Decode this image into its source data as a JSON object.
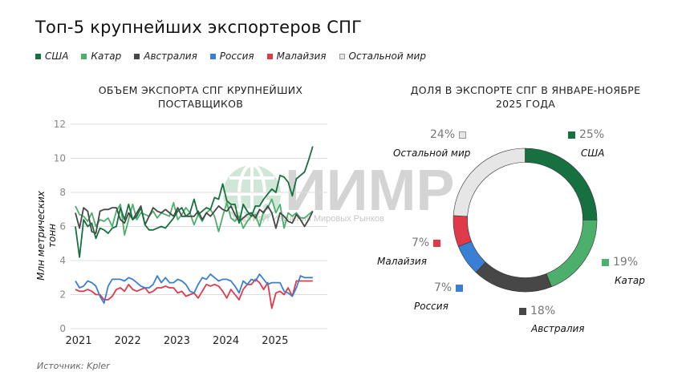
{
  "title": "Топ-5 крупнейших экспортеров СПГ",
  "legend": [
    {
      "label": "США",
      "color": "#17703f"
    },
    {
      "label": "Катар",
      "color": "#4caf6b"
    },
    {
      "label": "Австралия",
      "color": "#474747"
    },
    {
      "label": "Россия",
      "color": "#3a7fd4"
    },
    {
      "label": "Малайзия",
      "color": "#df3a4a"
    },
    {
      "label": "Остальной мир",
      "color": "#e6e6e6"
    }
  ],
  "watermark": {
    "text": "ИИМР",
    "subtext": "Институт Изучения Мировых Рынков"
  },
  "source": "Источник: Kpler",
  "chart_data": [
    {
      "type": "line",
      "title": "Объем экспорта СПГ крупнейших поставщиков",
      "xlabel": "",
      "ylabel": "Млн метрических тонн",
      "ylim": [
        0,
        12
      ],
      "yticks": [
        0,
        2,
        4,
        6,
        8,
        10,
        12
      ],
      "xtick_labels": [
        "2021",
        "2022",
        "2023",
        "2024",
        "2025"
      ],
      "x_range": "январь 2021 – ноябрь 2025 (помесячно)",
      "grid": true,
      "series": [
        {
          "name": "США",
          "color": "#17703f",
          "values": [
            6.0,
            4.2,
            6.4,
            6.0,
            6.2,
            5.3,
            5.9,
            5.8,
            5.6,
            5.9,
            6.0,
            7.1,
            6.4,
            7.3,
            6.4,
            6.6,
            7.1,
            6.1,
            5.8,
            5.8,
            5.9,
            6.0,
            5.9,
            6.2,
            6.5,
            6.9,
            7.1,
            6.6,
            6.8,
            7.6,
            6.7,
            6.9,
            7.1,
            7.0,
            7.7,
            7.6,
            8.5,
            7.5,
            7.3,
            7.3,
            6.2,
            7.3,
            6.9,
            6.6,
            7.2,
            7.2,
            7.6,
            7.9,
            8.2,
            8.0,
            9.0,
            8.9,
            8.6,
            7.8,
            8.8,
            9.0,
            9.2,
            9.9,
            10.7
          ]
        },
        {
          "name": "Катар",
          "color": "#4caf6b",
          "values": [
            7.2,
            6.7,
            6.6,
            6.3,
            6.8,
            6.0,
            6.4,
            6.3,
            6.5,
            6.0,
            6.9,
            7.3,
            5.5,
            6.4,
            7.3,
            6.4,
            6.8,
            6.7,
            6.6,
            6.9,
            6.5,
            6.8,
            6.7,
            6.6,
            7.4,
            6.4,
            6.7,
            7.1,
            6.8,
            6.1,
            6.7,
            6.3,
            6.8,
            7.0,
            6.6,
            5.7,
            6.6,
            7.4,
            6.5,
            6.3,
            6.6,
            5.9,
            6.3,
            6.6,
            6.7,
            6.0,
            6.9,
            7.1,
            7.6,
            6.8,
            7.3,
            5.9,
            6.8,
            6.6,
            6.8,
            6.5,
            6.5,
            6.7,
            6.9
          ]
        },
        {
          "name": "Австралия",
          "color": "#474747",
          "values": [
            6.8,
            5.9,
            7.1,
            6.9,
            5.7,
            5.6,
            6.9,
            7.0,
            7.0,
            7.1,
            7.1,
            6.4,
            6.2,
            6.8,
            6.4,
            6.8,
            7.2,
            6.1,
            6.6,
            7.1,
            6.9,
            6.8,
            7.0,
            6.8,
            6.6,
            7.1,
            6.6,
            6.6,
            6.6,
            6.6,
            6.9,
            6.4,
            6.8,
            6.6,
            6.9,
            7.2,
            7.0,
            6.9,
            7.2,
            6.7,
            6.3,
            6.5,
            6.7,
            6.8,
            6.5,
            7.0,
            6.8,
            7.2,
            6.8,
            5.9,
            6.8,
            6.6,
            6.3,
            6.2,
            6.7,
            6.4,
            6.0,
            6.4,
            6.9
          ]
        },
        {
          "name": "Россия",
          "color": "#3a7fd4",
          "values": [
            2.8,
            2.4,
            2.5,
            2.8,
            2.7,
            2.5,
            1.9,
            1.5,
            2.5,
            2.9,
            2.9,
            2.9,
            2.8,
            3.0,
            2.9,
            2.7,
            2.5,
            2.4,
            2.4,
            2.6,
            3.1,
            2.7,
            3.0,
            2.7,
            2.7,
            2.9,
            2.8,
            2.6,
            2.2,
            2.1,
            2.6,
            3.0,
            2.9,
            3.2,
            3.0,
            2.8,
            2.9,
            2.9,
            2.8,
            2.5,
            2.1,
            2.8,
            2.6,
            2.9,
            2.8,
            3.2,
            2.9,
            2.6,
            2.7,
            2.7,
            2.7,
            2.2,
            2.1,
            1.9,
            2.4,
            3.1,
            3.0,
            3.0,
            3.0
          ]
        },
        {
          "name": "Малайзия",
          "color": "#df3a4a",
          "values": [
            2.3,
            2.2,
            2.2,
            2.3,
            2.2,
            2.0,
            2.0,
            1.7,
            1.7,
            1.9,
            2.3,
            2.4,
            2.2,
            2.6,
            2.3,
            2.2,
            2.3,
            2.4,
            2.1,
            2.2,
            2.4,
            2.4,
            2.5,
            2.4,
            2.4,
            2.1,
            2.2,
            1.9,
            2.0,
            2.1,
            1.8,
            2.2,
            2.6,
            2.5,
            2.6,
            2.5,
            2.2,
            1.8,
            2.3,
            2.0,
            1.7,
            2.3,
            2.6,
            2.6,
            2.9,
            2.7,
            2.3,
            2.7,
            1.2,
            2.1,
            2.2,
            2.0,
            2.4,
            1.9,
            2.8,
            2.8,
            2.8,
            2.8,
            2.8
          ]
        }
      ]
    },
    {
      "type": "pie",
      "variant": "donut",
      "title": "Доля в экспорте СПГ в январе-ноябре 2025 года",
      "categories": [
        "США",
        "Катар",
        "Австралия",
        "Россия",
        "Малайзия",
        "Остальной мир"
      ],
      "values": [
        25,
        19,
        18,
        7,
        7,
        24
      ],
      "unit": "%",
      "colors": [
        "#17703f",
        "#4caf6b",
        "#474747",
        "#3a7fd4",
        "#df3a4a",
        "#e6e6e6"
      ]
    }
  ],
  "donut_labels": [
    {
      "name": "США",
      "pct": "25%",
      "color": "#17703f"
    },
    {
      "name": "Катар",
      "pct": "19%",
      "color": "#4caf6b"
    },
    {
      "name": "Австралия",
      "pct": "18%",
      "color": "#474747"
    },
    {
      "name": "Россия",
      "pct": "7%",
      "color": "#3a7fd4"
    },
    {
      "name": "Малайзия",
      "pct": "7%",
      "color": "#df3a4a"
    },
    {
      "name": "Остальной мир",
      "pct": "24%",
      "color": "#e6e6e6"
    }
  ],
  "left_title": "Объем экспорта СПГ крупнейших поставщиков",
  "right_title": "Доля в экспорте СПГ в январе-ноябре 2025 года"
}
